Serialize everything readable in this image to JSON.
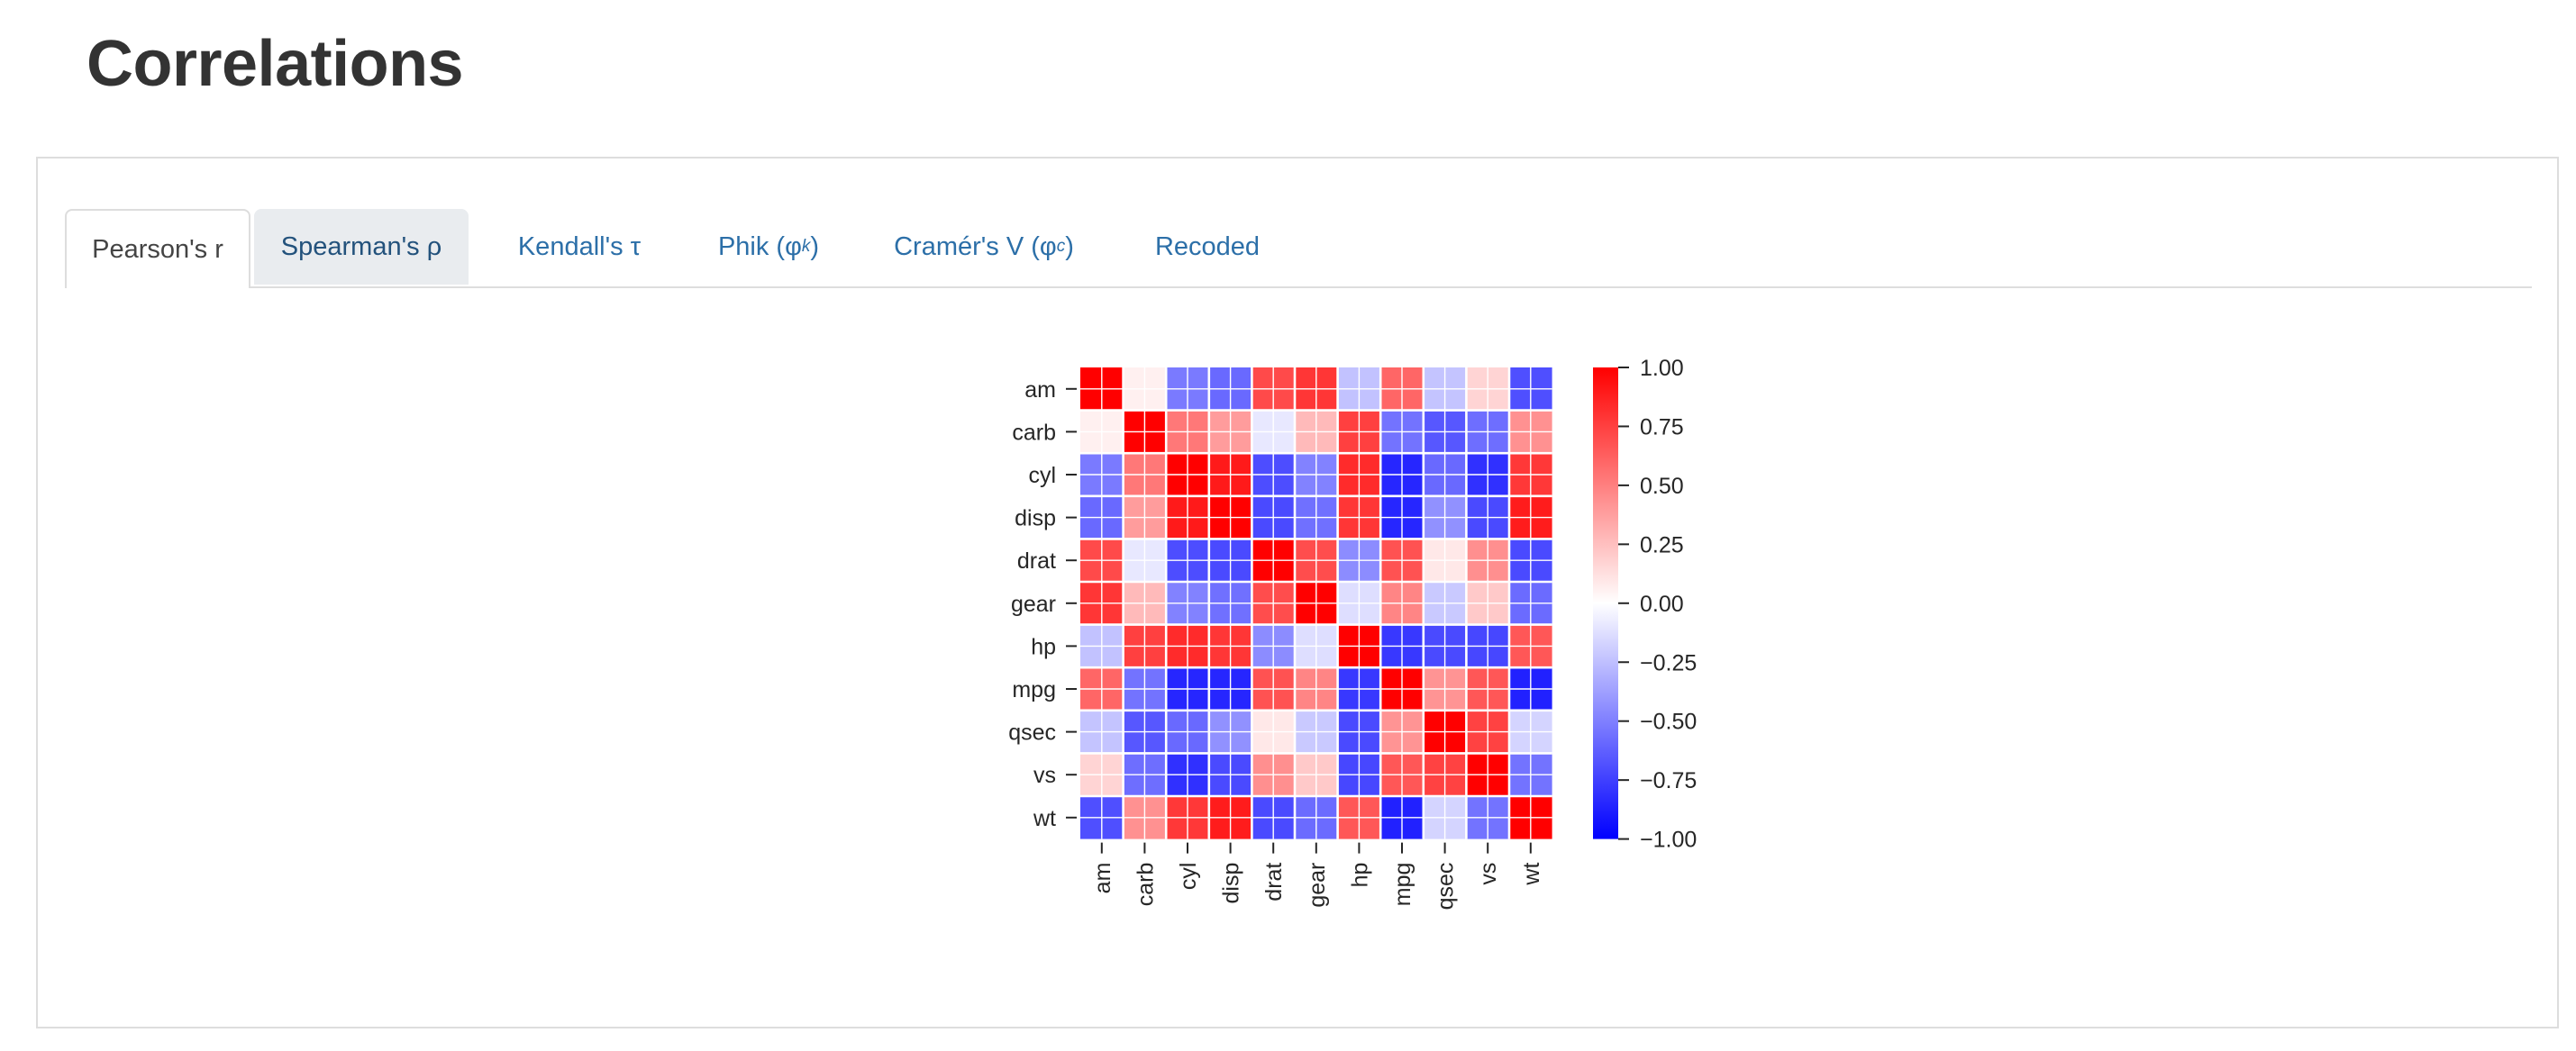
{
  "page": {
    "title": "Correlations"
  },
  "tabs": [
    {
      "label": "Pearson's r",
      "active": true
    },
    {
      "label": "Spearman's ρ",
      "active": false
    },
    {
      "label": "Kendall's τ",
      "active": false
    },
    {
      "label": "Phik (φ",
      "sub": "k",
      "suffix": ")",
      "active": false
    },
    {
      "label": "Cramér's V (φ",
      "sub": "c",
      "suffix": ")",
      "active": false
    },
    {
      "label": "Recoded",
      "active": false
    }
  ],
  "colors": {
    "positive": "#ff0000",
    "neutral": "#ffffff",
    "negative": "#0000ff",
    "link": "#2c6fa8"
  },
  "chart_data": {
    "type": "heatmap",
    "variables": [
      "am",
      "carb",
      "cyl",
      "disp",
      "drat",
      "gear",
      "hp",
      "mpg",
      "qsec",
      "vs",
      "wt"
    ],
    "values": [
      [
        1.0,
        0.06,
        -0.52,
        -0.59,
        0.71,
        0.79,
        -0.24,
        0.6,
        -0.23,
        0.17,
        -0.69
      ],
      [
        0.06,
        1.0,
        0.53,
        0.39,
        -0.09,
        0.27,
        0.75,
        -0.55,
        -0.66,
        -0.57,
        0.43
      ],
      [
        -0.52,
        0.53,
        1.0,
        0.9,
        -0.7,
        -0.49,
        0.83,
        -0.85,
        -0.59,
        -0.81,
        0.78
      ],
      [
        -0.59,
        0.39,
        0.9,
        1.0,
        -0.71,
        -0.56,
        0.79,
        -0.85,
        -0.43,
        -0.71,
        0.89
      ],
      [
        0.71,
        -0.09,
        -0.7,
        -0.71,
        1.0,
        0.7,
        -0.45,
        0.68,
        0.09,
        0.44,
        -0.71
      ],
      [
        0.79,
        0.27,
        -0.49,
        -0.56,
        0.7,
        1.0,
        -0.13,
        0.48,
        -0.21,
        0.21,
        -0.58
      ],
      [
        -0.24,
        0.75,
        0.83,
        0.79,
        -0.45,
        -0.13,
        1.0,
        -0.78,
        -0.71,
        -0.72,
        0.66
      ],
      [
        0.6,
        -0.55,
        -0.85,
        -0.85,
        0.68,
        0.48,
        -0.78,
        1.0,
        0.42,
        0.66,
        -0.87
      ],
      [
        -0.23,
        -0.66,
        -0.59,
        -0.43,
        0.09,
        -0.21,
        -0.71,
        0.42,
        1.0,
        0.74,
        -0.17
      ],
      [
        0.17,
        -0.57,
        -0.81,
        -0.71,
        0.44,
        0.21,
        -0.72,
        0.66,
        0.74,
        1.0,
        -0.55
      ],
      [
        -0.69,
        0.43,
        0.78,
        0.89,
        -0.71,
        -0.58,
        0.66,
        -0.87,
        -0.17,
        -0.55,
        1.0
      ]
    ],
    "colorbar": {
      "range": [
        -1.0,
        1.0
      ],
      "ticks": [
        "1.00",
        "0.75",
        "0.50",
        "0.25",
        "0.00",
        "−0.25",
        "−0.50",
        "−0.75",
        "−1.00"
      ]
    },
    "grid": true
  }
}
